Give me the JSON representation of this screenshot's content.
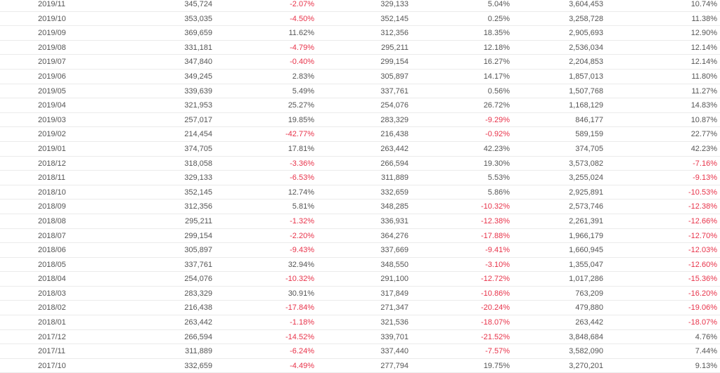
{
  "colors": {
    "negative": "#e8334a",
    "text": "#555555",
    "row_border": "#ebebeb"
  },
  "rows": [
    [
      "2019/11",
      "345,724",
      "-2.07%",
      "329,133",
      "5.04%",
      "3,604,453",
      "10.74%"
    ],
    [
      "2019/10",
      "353,035",
      "-4.50%",
      "352,145",
      "0.25%",
      "3,258,728",
      "11.38%"
    ],
    [
      "2019/09",
      "369,659",
      "11.62%",
      "312,356",
      "18.35%",
      "2,905,693",
      "12.90%"
    ],
    [
      "2019/08",
      "331,181",
      "-4.79%",
      "295,211",
      "12.18%",
      "2,536,034",
      "12.14%"
    ],
    [
      "2019/07",
      "347,840",
      "-0.40%",
      "299,154",
      "16.27%",
      "2,204,853",
      "12.14%"
    ],
    [
      "2019/06",
      "349,245",
      "2.83%",
      "305,897",
      "14.17%",
      "1,857,013",
      "11.80%"
    ],
    [
      "2019/05",
      "339,639",
      "5.49%",
      "337,761",
      "0.56%",
      "1,507,768",
      "11.27%"
    ],
    [
      "2019/04",
      "321,953",
      "25.27%",
      "254,076",
      "26.72%",
      "1,168,129",
      "14.83%"
    ],
    [
      "2019/03",
      "257,017",
      "19.85%",
      "283,329",
      "-9.29%",
      "846,177",
      "10.87%"
    ],
    [
      "2019/02",
      "214,454",
      "-42.77%",
      "216,438",
      "-0.92%",
      "589,159",
      "22.77%"
    ],
    [
      "2019/01",
      "374,705",
      "17.81%",
      "263,442",
      "42.23%",
      "374,705",
      "42.23%"
    ],
    [
      "2018/12",
      "318,058",
      "-3.36%",
      "266,594",
      "19.30%",
      "3,573,082",
      "-7.16%"
    ],
    [
      "2018/11",
      "329,133",
      "-6.53%",
      "311,889",
      "5.53%",
      "3,255,024",
      "-9.13%"
    ],
    [
      "2018/10",
      "352,145",
      "12.74%",
      "332,659",
      "5.86%",
      "2,925,891",
      "-10.53%"
    ],
    [
      "2018/09",
      "312,356",
      "5.81%",
      "348,285",
      "-10.32%",
      "2,573,746",
      "-12.38%"
    ],
    [
      "2018/08",
      "295,211",
      "-1.32%",
      "336,931",
      "-12.38%",
      "2,261,391",
      "-12.66%"
    ],
    [
      "2018/07",
      "299,154",
      "-2.20%",
      "364,276",
      "-17.88%",
      "1,966,179",
      "-12.70%"
    ],
    [
      "2018/06",
      "305,897",
      "-9.43%",
      "337,669",
      "-9.41%",
      "1,660,945",
      "-12.03%"
    ],
    [
      "2018/05",
      "337,761",
      "32.94%",
      "348,550",
      "-3.10%",
      "1,355,047",
      "-12.60%"
    ],
    [
      "2018/04",
      "254,076",
      "-10.32%",
      "291,100",
      "-12.72%",
      "1,017,286",
      "-15.36%"
    ],
    [
      "2018/03",
      "283,329",
      "30.91%",
      "317,849",
      "-10.86%",
      "763,209",
      "-16.20%"
    ],
    [
      "2018/02",
      "216,438",
      "-17.84%",
      "271,347",
      "-20.24%",
      "479,880",
      "-19.06%"
    ],
    [
      "2018/01",
      "263,442",
      "-1.18%",
      "321,536",
      "-18.07%",
      "263,442",
      "-18.07%"
    ],
    [
      "2017/12",
      "266,594",
      "-14.52%",
      "339,701",
      "-21.52%",
      "3,848,684",
      "4.76%"
    ],
    [
      "2017/11",
      "311,889",
      "-6.24%",
      "337,440",
      "-7.57%",
      "3,582,090",
      "7.44%"
    ],
    [
      "2017/10",
      "332,659",
      "-4.49%",
      "277,794",
      "19.75%",
      "3,270,201",
      "9.13%"
    ]
  ]
}
